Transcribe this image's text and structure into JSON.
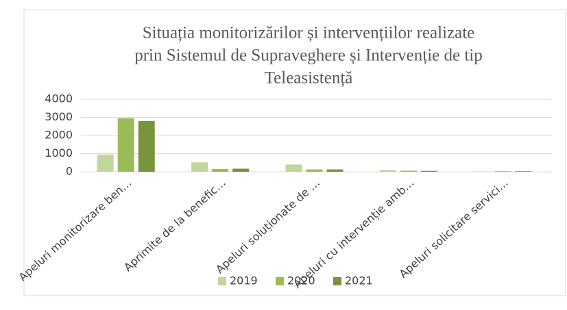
{
  "chart_data": {
    "type": "bar",
    "title": [
      "Situația monitorizărilor și intervențiilor realizate",
      "prin Sistemul de Supraveghere și Intervenție de tip",
      "Teleasistență"
    ],
    "categories": [
      "Apeluri monitorizare ben…",
      "Aprimite de la benefic…",
      "Apeluri soluționate de …",
      "Apeluri cu intervenție amb…",
      "Apeluri solicitare servici…"
    ],
    "series": [
      {
        "name": "2019",
        "color": "#c3d69b",
        "values": [
          950,
          520,
          400,
          100,
          20
        ]
      },
      {
        "name": "2020",
        "color": "#9bbb59",
        "values": [
          2950,
          150,
          130,
          60,
          30
        ]
      },
      {
        "name": "2021",
        "color": "#77933c",
        "values": [
          2800,
          170,
          130,
          50,
          30
        ]
      }
    ],
    "ylim": [
      0,
      4000
    ],
    "yticks": [
      0,
      1000,
      2000,
      3000,
      4000
    ],
    "grid": true,
    "legend": "bottom"
  }
}
